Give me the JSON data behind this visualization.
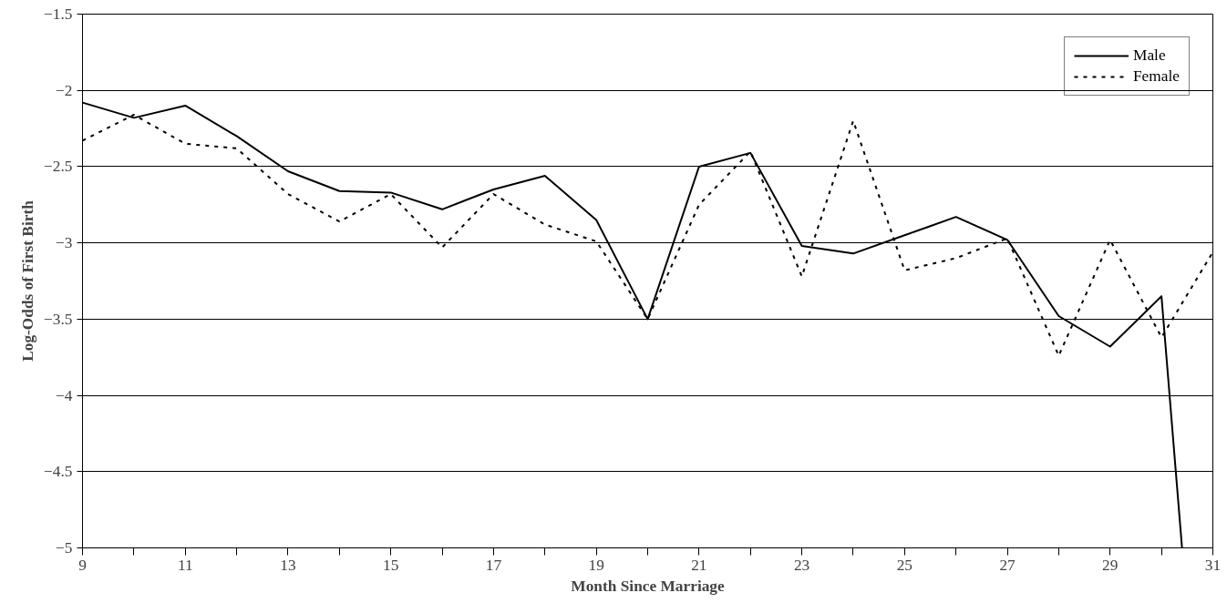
{
  "chart_data": {
    "type": "line",
    "xlabel": "Month Since Marriage",
    "ylabel": "Log-Odds of First Birth",
    "xlim": [
      9,
      31
    ],
    "ylim": [
      -5,
      -1.5
    ],
    "xticks": [
      9,
      {
        "value": 10,
        "label": null
      },
      11,
      {
        "value": 12,
        "label": null
      },
      13,
      {
        "value": 14,
        "label": null
      },
      15,
      {
        "value": 16,
        "label": null
      },
      17,
      {
        "value": 18,
        "label": null
      },
      19,
      {
        "value": 20,
        "label": null
      },
      21,
      {
        "value": 22,
        "label": null
      },
      23,
      {
        "value": 24,
        "label": null
      },
      25,
      {
        "value": 26,
        "label": null
      },
      27,
      {
        "value": 28,
        "label": null
      },
      29,
      {
        "value": 30,
        "label": null
      },
      31
    ],
    "yticks": [
      -5,
      -4.5,
      -4,
      -3.5,
      -3,
      -2.5,
      -2,
      -1.5
    ],
    "grid": "y",
    "legend": "top right",
    "marker": "none",
    "series": [
      {
        "name": "Male",
        "color": "#000000",
        "line_style": "solid",
        "x": [
          9,
          10,
          11,
          12,
          13,
          14,
          15,
          16,
          17,
          18,
          19,
          20,
          21,
          22,
          23,
          24,
          25,
          26,
          27,
          28,
          29,
          30,
          30.4
        ],
        "values": [
          -2.08,
          -2.18,
          -2.1,
          -2.3,
          -2.53,
          -2.66,
          -2.67,
          -2.78,
          -2.65,
          -2.56,
          -2.85,
          -3.5,
          -2.5,
          -2.41,
          -3.02,
          -3.07,
          -2.95,
          -2.83,
          -2.98,
          -3.48,
          -3.68,
          -3.35,
          -5
        ]
      },
      {
        "name": "Female",
        "color": "#000000",
        "line_style": "dashed",
        "x": [
          9,
          10,
          11,
          12,
          13,
          14,
          15,
          16,
          17,
          18,
          19,
          20,
          21,
          22,
          23,
          24,
          25,
          26,
          27,
          28,
          29,
          30,
          31
        ],
        "values": [
          -2.33,
          -2.16,
          -2.35,
          -2.38,
          -2.68,
          -2.86,
          -2.68,
          -3.03,
          -2.68,
          -2.88,
          -2.99,
          -3.5,
          -2.75,
          -2.4,
          -3.22,
          -2.2,
          -3.18,
          -3.1,
          -2.97,
          -3.74,
          -2.98,
          -3.62,
          -3.06
        ]
      }
    ]
  }
}
